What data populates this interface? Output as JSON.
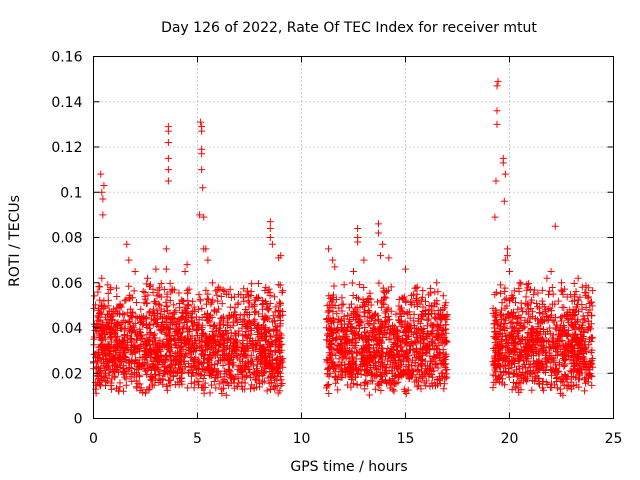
{
  "chart_data": {
    "type": "scatter",
    "title": "Day 126 of 2022, Rate Of TEC Index for receiver mtut",
    "xlabel": "GPS time / hours",
    "ylabel": "ROTI / TECUs",
    "xlim": [
      0,
      25
    ],
    "ylim": [
      0,
      0.16
    ],
    "x_ticks": [
      "0",
      "5",
      "10",
      "15",
      "20",
      "25"
    ],
    "y_ticks": [
      "0",
      "0.02",
      "0.04",
      "0.06",
      "0.08",
      "0.1",
      "0.12",
      "0.14",
      "0.16"
    ],
    "x_tick_values": [
      0,
      5,
      10,
      15,
      20,
      25
    ],
    "y_tick_values": [
      0,
      0.02,
      0.04,
      0.06,
      0.08,
      0.1,
      0.12,
      0.14,
      0.16
    ],
    "grid": true,
    "marker": "+",
    "color": "#ff0000",
    "observation_windows_hours": [
      [
        0,
        9.1
      ],
      [
        11.2,
        17.0
      ],
      [
        19.2,
        24.0
      ]
    ],
    "background_level": {
      "min": 0.01,
      "typical": 0.025,
      "max": 0.06
    },
    "points": [
      [
        0.1,
        0.013
      ],
      [
        0.2,
        0.02
      ],
      [
        0.25,
        0.027
      ],
      [
        0.3,
        0.015
      ],
      [
        0.35,
        0.108
      ],
      [
        0.4,
        0.1
      ],
      [
        0.45,
        0.097
      ],
      [
        0.45,
        0.09
      ],
      [
        0.5,
        0.103
      ],
      [
        0.4,
        0.062
      ],
      [
        0.4,
        0.05
      ],
      [
        0.5,
        0.052
      ],
      [
        1.6,
        0.077
      ],
      [
        1.7,
        0.07
      ],
      [
        2.0,
        0.065
      ],
      [
        2.6,
        0.062
      ],
      [
        3.0,
        0.066
      ],
      [
        3.5,
        0.075
      ],
      [
        3.5,
        0.066
      ],
      [
        3.6,
        0.129
      ],
      [
        3.6,
        0.127
      ],
      [
        3.6,
        0.122
      ],
      [
        3.6,
        0.115
      ],
      [
        3.6,
        0.11
      ],
      [
        3.6,
        0.105
      ],
      [
        4.5,
        0.068
      ],
      [
        4.4,
        0.065
      ],
      [
        5.1,
        0.09
      ],
      [
        5.15,
        0.131
      ],
      [
        5.2,
        0.129
      ],
      [
        5.2,
        0.127
      ],
      [
        5.2,
        0.119
      ],
      [
        5.2,
        0.117
      ],
      [
        5.2,
        0.11
      ],
      [
        5.25,
        0.102
      ],
      [
        5.3,
        0.089
      ],
      [
        5.3,
        0.075
      ],
      [
        5.4,
        0.075
      ],
      [
        5.5,
        0.07
      ],
      [
        6.0,
        0.058
      ],
      [
        6.5,
        0.055
      ],
      [
        8.5,
        0.087
      ],
      [
        8.5,
        0.084
      ],
      [
        8.5,
        0.08
      ],
      [
        8.6,
        0.077
      ],
      [
        8.9,
        0.071
      ],
      [
        9.0,
        0.072
      ],
      [
        11.3,
        0.075
      ],
      [
        11.5,
        0.07
      ],
      [
        11.6,
        0.067
      ],
      [
        12.7,
        0.084
      ],
      [
        12.7,
        0.08
      ],
      [
        12.7,
        0.078
      ],
      [
        12.5,
        0.065
      ],
      [
        13.0,
        0.07
      ],
      [
        13.7,
        0.086
      ],
      [
        13.7,
        0.082
      ],
      [
        13.9,
        0.077
      ],
      [
        13.8,
        0.072
      ],
      [
        14.2,
        0.071
      ],
      [
        15.0,
        0.066
      ],
      [
        16.5,
        0.06
      ],
      [
        16.9,
        0.05
      ],
      [
        19.3,
        0.089
      ],
      [
        19.35,
        0.105
      ],
      [
        19.4,
        0.13
      ],
      [
        19.4,
        0.136
      ],
      [
        19.4,
        0.147
      ],
      [
        19.45,
        0.149
      ],
      [
        19.7,
        0.115
      ],
      [
        19.7,
        0.113
      ],
      [
        19.8,
        0.108
      ],
      [
        19.75,
        0.096
      ],
      [
        19.9,
        0.075
      ],
      [
        19.9,
        0.072
      ],
      [
        19.8,
        0.07
      ],
      [
        20.0,
        0.065
      ],
      [
        20.5,
        0.06
      ],
      [
        21.0,
        0.057
      ],
      [
        21.8,
        0.062
      ],
      [
        22.2,
        0.085
      ],
      [
        22.0,
        0.065
      ],
      [
        22.5,
        0.06
      ],
      [
        23.3,
        0.062
      ],
      [
        23.5,
        0.058
      ]
    ]
  }
}
